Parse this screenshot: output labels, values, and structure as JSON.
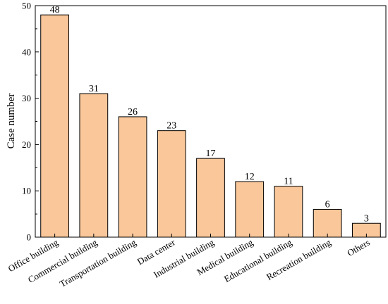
{
  "chart_data": {
    "type": "bar",
    "categories": [
      "Office building",
      "Commercial building",
      "Transportation building",
      "Data center",
      "Industrial building",
      "Medical building",
      "Educational building",
      "Recreation building",
      "Others"
    ],
    "values": [
      48,
      31,
      26,
      23,
      17,
      12,
      11,
      6,
      3
    ],
    "data_labels": [
      "48",
      "31",
      "26",
      "23",
      "17",
      "12",
      "11",
      "6",
      "3"
    ],
    "xlabel": "",
    "ylabel": "Case number",
    "ylim": [
      0,
      50
    ],
    "yticks": [
      0,
      10,
      20,
      30,
      40,
      50
    ],
    "ytick_labels": [
      "0",
      "10",
      "20",
      "30",
      "40",
      "50"
    ],
    "grid": false,
    "legend": "none",
    "bar_color": "#F9C79A",
    "bar_edge_color": "#000000"
  }
}
